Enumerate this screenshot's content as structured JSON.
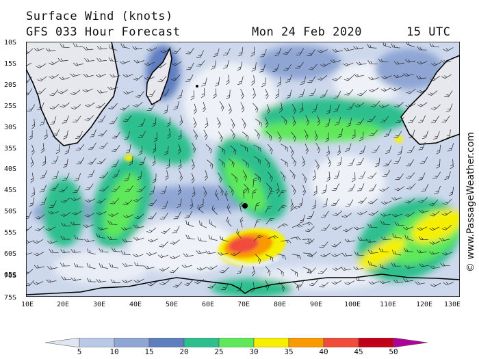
{
  "header": {
    "title": "Surface Wind (knots)",
    "model": "GFS 033 Hour Forecast",
    "date": "Mon 24 Feb 2020",
    "time": "15 UTC"
  },
  "copyright": "© www.PassageWeather.com",
  "axes": {
    "latitudes": [
      "10S",
      "15S",
      "20S",
      "25S",
      "30S",
      "35S",
      "40S",
      "45S",
      "50S",
      "55S",
      "60S",
      "65S",
      "70S",
      "75S"
    ],
    "longitudes": [
      "10E",
      "20E",
      "30E",
      "40E",
      "50E",
      "60E",
      "70E",
      "80E",
      "90E",
      "100E",
      "110E",
      "120E",
      "130E"
    ]
  },
  "colorbar": {
    "labels": [
      "5",
      "10",
      "15",
      "20",
      "25",
      "30",
      "35",
      "40",
      "45",
      "50"
    ],
    "colors": [
      "#dfe6f2",
      "#b9c8e4",
      "#8fa6d4",
      "#5f7ec0",
      "#2dbf8e",
      "#5ee85a",
      "#f6f000",
      "#f89a00",
      "#f04c3c",
      "#c00018",
      "#b0009a"
    ]
  }
}
